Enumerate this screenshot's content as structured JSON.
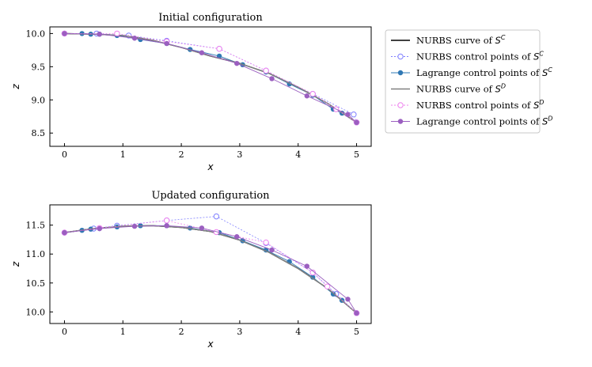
{
  "chart_data": [
    {
      "type": "line",
      "title": "Initial configuration",
      "xlabel": "x",
      "ylabel": "z",
      "xlim": [
        -0.25,
        5.25
      ],
      "ylim": [
        8.3,
        10.1
      ],
      "xticks": [
        "0",
        "1",
        "2",
        "3",
        "4",
        "5"
      ],
      "yticks": [
        "8.5",
        "9.0",
        "9.5",
        "10.0"
      ],
      "grid": false,
      "series": [
        {
          "name": "NURBS curve of S^C",
          "style": "curve",
          "color": "#000000",
          "x": [
            0,
            0.5,
            1,
            1.5,
            2,
            2.5,
            3,
            3.5,
            4,
            4.5,
            5
          ],
          "y": [
            10.0,
            9.99,
            9.97,
            9.9,
            9.79,
            9.66,
            9.55,
            9.4,
            9.19,
            8.95,
            8.66
          ]
        },
        {
          "name": "NURBS control points of S^C",
          "style": "open",
          "color": "#8080ff",
          "x": [
            0,
            0.55,
            1.1,
            1.75,
            2.65,
            3.45,
            4.25,
            4.95,
            5.0
          ],
          "y": [
            10.0,
            10.0,
            9.97,
            9.89,
            9.77,
            9.44,
            9.09,
            8.78,
            8.66
          ]
        },
        {
          "name": "Lagrange control points of S^C",
          "style": "filled",
          "color": "#2f78b4",
          "x": [
            0,
            0.3,
            0.45,
            0.6,
            0.9,
            1.3,
            1.75,
            2.15,
            2.65,
            3.05,
            3.45,
            3.85,
            4.25,
            4.6,
            4.75,
            5.0
          ],
          "y": [
            10.0,
            10.0,
            9.99,
            9.99,
            9.97,
            9.91,
            9.85,
            9.76,
            9.66,
            9.53,
            9.42,
            9.24,
            9.07,
            8.86,
            8.8,
            8.66
          ]
        },
        {
          "name": "NURBS curve of S^D",
          "style": "curve",
          "color": "#808080",
          "x": [
            0,
            0.5,
            1,
            1.5,
            2,
            2.5,
            3,
            3.5,
            4,
            4.5,
            5
          ],
          "y": [
            10.0,
            9.99,
            9.97,
            9.9,
            9.79,
            9.66,
            9.55,
            9.4,
            9.19,
            8.95,
            8.66
          ]
        },
        {
          "name": "NURBS control points of S^D",
          "style": "open",
          "color": "#ee82ee",
          "x": [
            0,
            0.9,
            1.75,
            2.65,
            3.45,
            4.25,
            4.65,
            5.0
          ],
          "y": [
            10.0,
            10.0,
            9.88,
            9.77,
            9.44,
            9.09,
            8.86,
            8.66
          ]
        },
        {
          "name": "Lagrange control points of S^D",
          "style": "filled",
          "color": "#9b5fc0",
          "x": [
            0,
            0.6,
            1.2,
            1.75,
            2.35,
            2.95,
            3.55,
            4.15,
            4.85,
            5.0
          ],
          "y": [
            10.0,
            9.99,
            9.93,
            9.85,
            9.71,
            9.55,
            9.32,
            9.06,
            8.78,
            8.66
          ]
        }
      ]
    },
    {
      "type": "line",
      "title": "Updated configuration",
      "xlabel": "x",
      "ylabel": "z",
      "xlim": [
        -0.25,
        5.25
      ],
      "ylim": [
        9.8,
        11.85
      ],
      "xticks": [
        "0",
        "1",
        "2",
        "3",
        "4",
        "5"
      ],
      "yticks": [
        "10.0",
        "10.5",
        "11.0",
        "11.5"
      ],
      "grid": false,
      "series": [
        {
          "name": "NURBS curve of S^C",
          "style": "curve",
          "color": "#000000",
          "x": [
            0,
            0.5,
            1,
            1.5,
            2,
            2.5,
            3,
            3.5,
            4,
            4.5,
            5
          ],
          "y": [
            11.37,
            11.44,
            11.48,
            11.49,
            11.46,
            11.39,
            11.24,
            11.03,
            10.75,
            10.41,
            9.98
          ]
        },
        {
          "name": "NURBS control points of S^C",
          "style": "open",
          "color": "#8080ff",
          "x": [
            0,
            0.5,
            0.9,
            1.75,
            2.6,
            3.45,
            4.25,
            4.65,
            5.0
          ],
          "y": [
            11.37,
            11.44,
            11.49,
            11.58,
            11.65,
            11.19,
            10.68,
            10.31,
            9.98
          ]
        },
        {
          "name": "Lagrange control points of S^C",
          "style": "filled",
          "color": "#2f78b4",
          "x": [
            0,
            0.3,
            0.45,
            0.6,
            0.9,
            1.3,
            1.75,
            2.15,
            2.65,
            3.05,
            3.45,
            3.85,
            4.25,
            4.6,
            4.75,
            5.0
          ],
          "y": [
            11.37,
            11.41,
            11.43,
            11.44,
            11.47,
            11.49,
            11.49,
            11.45,
            11.37,
            11.23,
            11.07,
            10.87,
            10.6,
            10.31,
            10.2,
            9.98
          ]
        },
        {
          "name": "NURBS curve of S^D",
          "style": "curve",
          "color": "#808080",
          "x": [
            0,
            0.5,
            1,
            1.5,
            2,
            2.5,
            3,
            3.5,
            4,
            4.5,
            5
          ],
          "y": [
            11.37,
            11.44,
            11.48,
            11.49,
            11.46,
            11.39,
            11.24,
            11.03,
            10.75,
            10.41,
            9.98
          ]
        },
        {
          "name": "NURBS control points of S^D",
          "style": "open",
          "color": "#ee82ee",
          "x": [
            0,
            0.6,
            1.75,
            2.6,
            3.45,
            4.25,
            4.5,
            5.0
          ],
          "y": [
            11.37,
            11.45,
            11.58,
            11.38,
            11.2,
            10.68,
            10.44,
            9.98
          ]
        },
        {
          "name": "Lagrange control points of S^D",
          "style": "filled",
          "color": "#9b5fc0",
          "x": [
            0,
            0.6,
            1.2,
            1.75,
            2.35,
            2.95,
            3.55,
            4.15,
            4.85,
            5.0
          ],
          "y": [
            11.37,
            11.44,
            11.48,
            11.49,
            11.45,
            11.3,
            11.07,
            10.79,
            10.22,
            9.98
          ]
        }
      ]
    }
  ],
  "legend": {
    "placement": "right",
    "entries": [
      {
        "prefix": "NURBS curve of ",
        "sym": "S",
        "sup": "C"
      },
      {
        "prefix": "NURBS control points of ",
        "sym": "S",
        "sup": "C"
      },
      {
        "prefix": "Lagrange control points of ",
        "sym": "S",
        "sup": "C"
      },
      {
        "prefix": "NURBS curve of ",
        "sym": "S",
        "sup": "D"
      },
      {
        "prefix": "NURBS control points of ",
        "sym": "S",
        "sup": "D"
      },
      {
        "prefix": "Lagrange control points of ",
        "sym": "S",
        "sup": "D"
      }
    ]
  }
}
